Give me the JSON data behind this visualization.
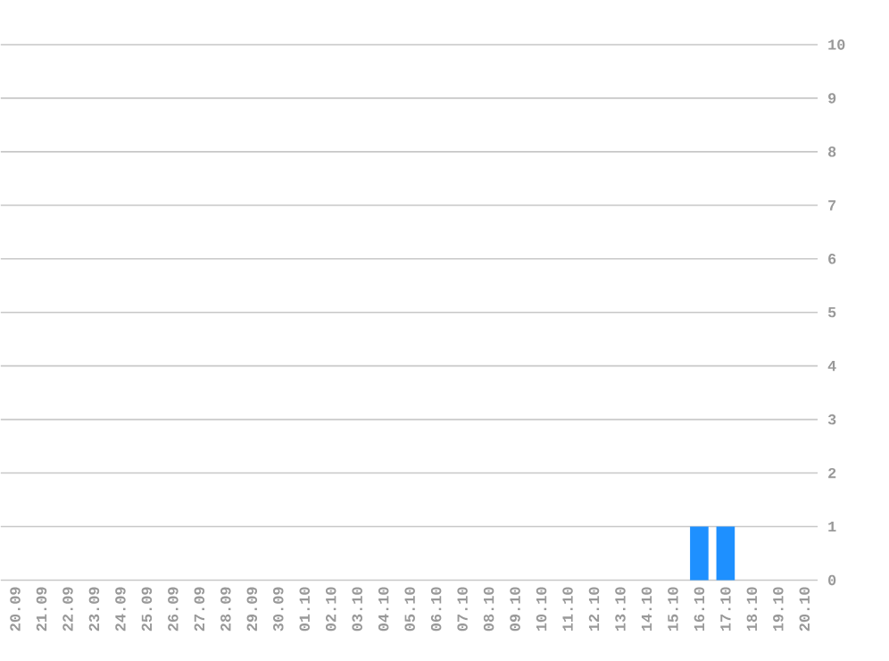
{
  "chart_data": {
    "type": "bar",
    "categories": [
      "20.09",
      "21.09",
      "22.09",
      "23.09",
      "24.09",
      "25.09",
      "26.09",
      "27.09",
      "28.09",
      "29.09",
      "30.09",
      "01.10",
      "02.10",
      "03.10",
      "04.10",
      "05.10",
      "06.10",
      "07.10",
      "08.10",
      "09.10",
      "10.10",
      "11.10",
      "12.10",
      "13.10",
      "14.10",
      "15.10",
      "16.10",
      "17.10",
      "18.10",
      "19.10",
      "20.10"
    ],
    "values": [
      0,
      0,
      0,
      0,
      0,
      0,
      0,
      0,
      0,
      0,
      0,
      0,
      0,
      0,
      0,
      0,
      0,
      0,
      0,
      0,
      0,
      0,
      0,
      0,
      0,
      0,
      1,
      1,
      0,
      0,
      0
    ],
    "color": "#1e90ff",
    "ylim": [
      0,
      10
    ],
    "yticks": [
      0,
      1,
      2,
      3,
      4,
      5,
      6,
      7,
      8,
      9,
      10
    ],
    "grid": "y",
    "legend": false
  }
}
